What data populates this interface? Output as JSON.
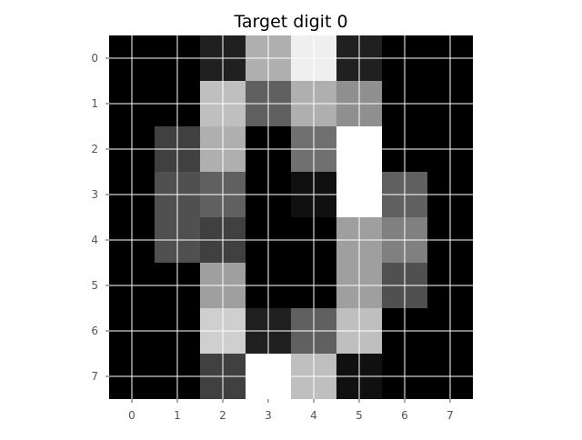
{
  "chart_data": {
    "type": "heatmap",
    "title": "Target digit 0",
    "xlabel": "",
    "ylabel": "",
    "colormap": "gray",
    "vmin": 0,
    "vmax": 16,
    "grid": true,
    "grid_color": "#ffffff",
    "x_ticks": [
      "0",
      "1",
      "2",
      "3",
      "4",
      "5",
      "6",
      "7"
    ],
    "y_ticks": [
      "0",
      "1",
      "2",
      "3",
      "4",
      "5",
      "6",
      "7"
    ],
    "values": [
      [
        0,
        0,
        2,
        11,
        15,
        2,
        0,
        0
      ],
      [
        0,
        0,
        12,
        6,
        11,
        9,
        0,
        0
      ],
      [
        0,
        4,
        11,
        0,
        7,
        16,
        0,
        0
      ],
      [
        0,
        5,
        6,
        0,
        1,
        16,
        6,
        0
      ],
      [
        0,
        5,
        4,
        0,
        0,
        10,
        8,
        0
      ],
      [
        0,
        0,
        10,
        0,
        0,
        10,
        5,
        0
      ],
      [
        0,
        0,
        13,
        2,
        6,
        12,
        0,
        0
      ],
      [
        0,
        0,
        4,
        16,
        12,
        1,
        0,
        0
      ]
    ]
  }
}
